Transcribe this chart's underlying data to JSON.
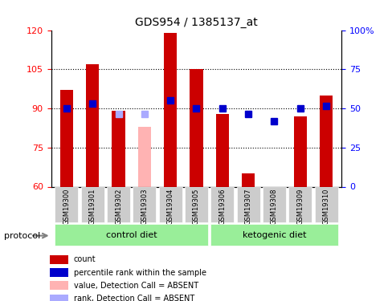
{
  "title": "GDS954 / 1385137_at",
  "samples": [
    "GSM19300",
    "GSM19301",
    "GSM19302",
    "GSM19303",
    "GSM19304",
    "GSM19305",
    "GSM19306",
    "GSM19307",
    "GSM19308",
    "GSM19309",
    "GSM19310"
  ],
  "bar_values": [
    97,
    107,
    89,
    null,
    119,
    105,
    88,
    65,
    60,
    87,
    95
  ],
  "bar_absent_value": 83,
  "bar_absent_index": 3,
  "blue_markers": [
    90,
    92,
    null,
    null,
    93,
    90,
    90,
    88,
    85,
    90,
    91
  ],
  "blue_absent_marker": 88,
  "blue_absent_index": 3,
  "ylim_left": [
    60,
    120
  ],
  "ylim_right": [
    0,
    100
  ],
  "yticks_left": [
    60,
    75,
    90,
    105,
    120
  ],
  "yticks_right": [
    0,
    25,
    50,
    75,
    100
  ],
  "ytick_labels_right": [
    "0",
    "25",
    "50",
    "75",
    "100%"
  ],
  "bar_color": "#cc0000",
  "bar_absent_color": "#ffb3b3",
  "blue_color": "#0000cc",
  "blue_absent_color": "#aaaaff",
  "control_group": [
    0,
    1,
    2,
    3,
    4,
    5
  ],
  "ketogenic_group": [
    6,
    7,
    8,
    9,
    10
  ],
  "group_labels": [
    "control diet",
    "ketogenic diet"
  ],
  "protocol_label": "protocol",
  "group_bg_color": "#99ee99",
  "tick_label_bg": "#cccccc",
  "legend_items": [
    {
      "color": "#cc0000",
      "label": "count"
    },
    {
      "color": "#0000cc",
      "label": "percentile rank within the sample"
    },
    {
      "color": "#ffb3b3",
      "label": "value, Detection Call = ABSENT"
    },
    {
      "color": "#aaaaff",
      "label": "rank, Detection Call = ABSENT"
    }
  ],
  "marker_size": 6,
  "bar_width": 0.5
}
